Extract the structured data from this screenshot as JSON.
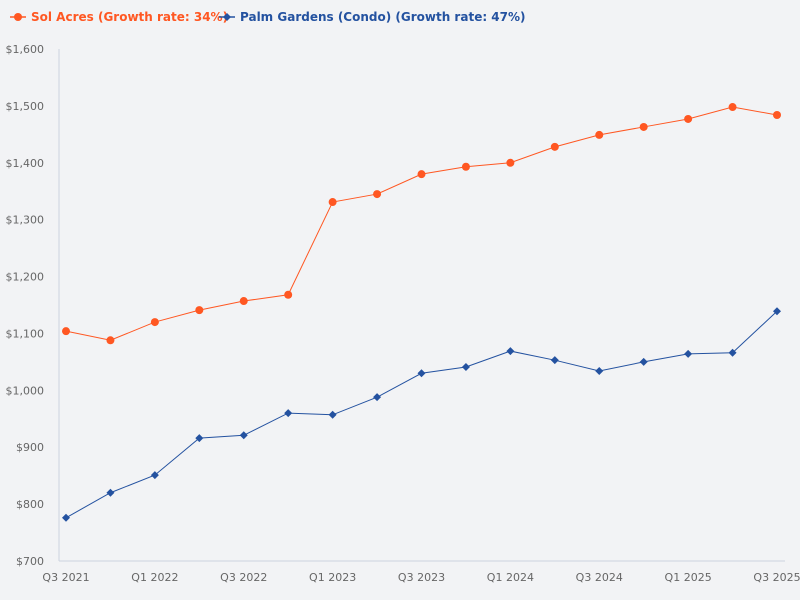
{
  "chart_data": {
    "type": "line",
    "categories": [
      "Q3 2021",
      "Q4 2021",
      "Q1 2022",
      "Q2 2022",
      "Q3 2022",
      "Q4 2022",
      "Q1 2023",
      "Q2 2023",
      "Q3 2023",
      "Q4 2023",
      "Q1 2024",
      "Q2 2024",
      "Q3 2024",
      "Q4 2024",
      "Q1 2025",
      "Q2 2025",
      "Q3 2025"
    ],
    "x_tick_labels": [
      "Q3 2021",
      "Q1 2022",
      "Q3 2022",
      "Q1 2023",
      "Q3 2023",
      "Q1 2024",
      "Q3 2024",
      "Q1 2025",
      "Q3 2025"
    ],
    "y_tick_labels": [
      "$700",
      "$800",
      "$900",
      "$1,000",
      "$1,100",
      "$1,200",
      "$1,300",
      "$1,400",
      "$1,500",
      "$1,600"
    ],
    "ylim": [
      700,
      1600
    ],
    "grid": false,
    "legend_position": "top-left",
    "series": [
      {
        "name": "Sol Acres (Growth rate: 34%)",
        "color": "#ff5722",
        "marker": "circle",
        "values": [
          1104,
          1088,
          1120,
          1141,
          1157,
          1168,
          1331,
          1345,
          1380,
          1393,
          1400,
          1428,
          1449,
          1463,
          1477,
          1498,
          1484
        ]
      },
      {
        "name": "Palm Gardens (Condo) (Growth rate: 47%)",
        "color": "#2452a0",
        "marker": "diamond",
        "values": [
          776,
          820,
          851,
          916,
          921,
          960,
          957,
          988,
          1030,
          1041,
          1069,
          1053,
          1034,
          1050,
          1064,
          1066,
          1139
        ]
      }
    ]
  }
}
